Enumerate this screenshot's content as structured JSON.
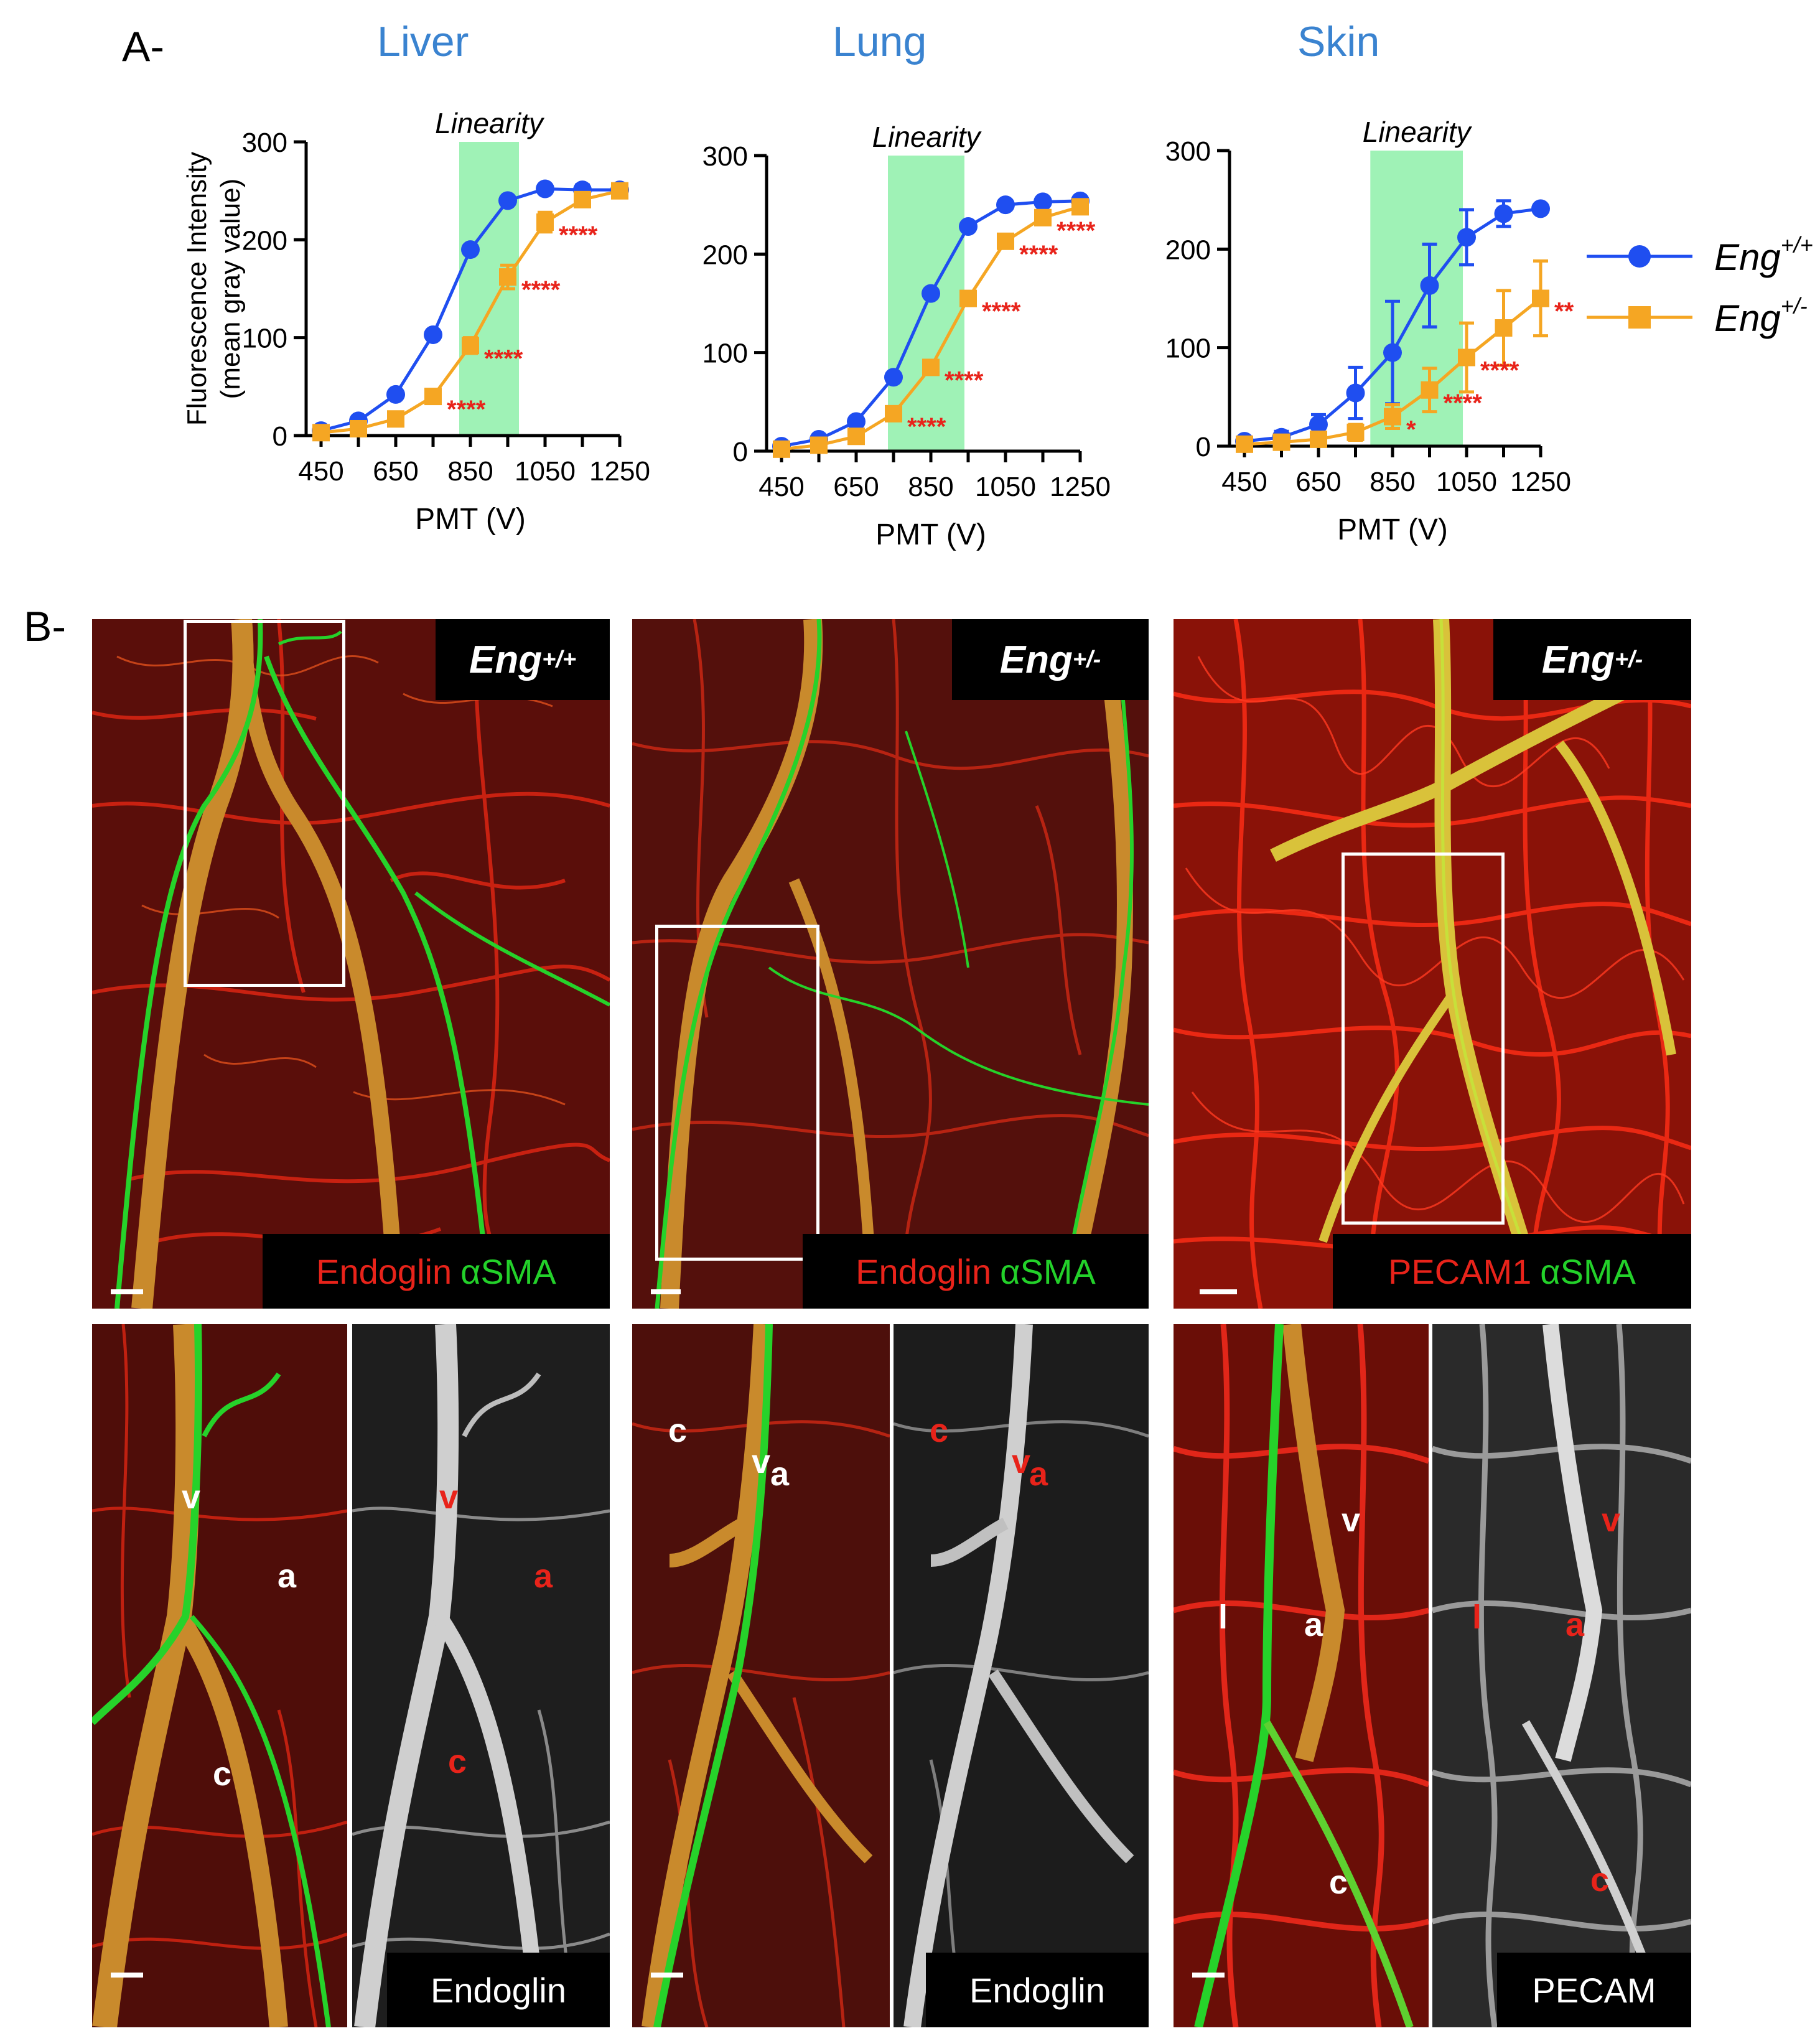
{
  "panel_a": {
    "letter": "A-"
  },
  "panel_b": {
    "letter": "B-"
  },
  "legend": {
    "wt": {
      "base": "Eng",
      "sup": "+/+",
      "color": "#1f4ef0"
    },
    "het": {
      "base": "Eng",
      "sup": "+/-",
      "color": "#f5a623"
    }
  },
  "chart_data": [
    {
      "type": "line",
      "title": "Liver",
      "xlabel": "PMT (V)",
      "ylabel": [
        "Fluorescence Intensity",
        "(mean gray value)"
      ],
      "x": [
        450,
        550,
        650,
        750,
        850,
        950,
        1050,
        1150,
        1250
      ],
      "xticks": [
        "450",
        "650",
        "850",
        "1050",
        "1250"
      ],
      "yticks": [
        0,
        100,
        200,
        300
      ],
      "xlim": [
        450,
        1250
      ],
      "ylim": [
        0,
        300
      ],
      "band": {
        "label": "Linearity",
        "x_from": 820,
        "x_to": 980
      },
      "series": [
        {
          "name": "Eng+/+",
          "values": [
            5,
            15,
            42,
            103,
            190,
            240,
            252,
            251,
            251
          ],
          "err": [
            0,
            0,
            0,
            0,
            0,
            0,
            0,
            5,
            0
          ]
        },
        {
          "name": "Eng+/-",
          "values": [
            3,
            7,
            17,
            40,
            92,
            162,
            218,
            241,
            250
          ],
          "err": [
            0,
            0,
            0,
            0,
            8,
            12,
            10,
            0,
            0
          ]
        }
      ],
      "significance": [
        {
          "x": 750,
          "y": 40,
          "text": "****"
        },
        {
          "x": 850,
          "y": 92,
          "text": "****"
        },
        {
          "x": 950,
          "y": 162,
          "text": "****"
        },
        {
          "x": 1050,
          "y": 218,
          "text": "****"
        }
      ]
    },
    {
      "type": "line",
      "title": "Lung",
      "xlabel": "PMT (V)",
      "ylabel": [],
      "x": [
        450,
        550,
        650,
        750,
        850,
        950,
        1050,
        1150,
        1250
      ],
      "xticks": [
        "450",
        "650",
        "850",
        "1050",
        "1250"
      ],
      "yticks": [
        0,
        100,
        200,
        300
      ],
      "xlim": [
        450,
        1250
      ],
      "ylim": [
        0,
        300
      ],
      "band": {
        "label": "Linearity",
        "x_from": 735,
        "x_to": 940
      },
      "series": [
        {
          "name": "Eng+/+",
          "values": [
            5,
            12,
            30,
            75,
            160,
            228,
            250,
            253,
            254
          ],
          "err": [
            0,
            0,
            0,
            0,
            0,
            0,
            0,
            0,
            0
          ]
        },
        {
          "name": "Eng+/-",
          "values": [
            2,
            6,
            15,
            38,
            85,
            155,
            213,
            237,
            248
          ],
          "err": [
            0,
            0,
            0,
            0,
            0,
            0,
            0,
            5,
            5
          ]
        }
      ],
      "significance": [
        {
          "x": 750,
          "y": 38,
          "text": "****"
        },
        {
          "x": 850,
          "y": 85,
          "text": "****"
        },
        {
          "x": 950,
          "y": 155,
          "text": "****"
        },
        {
          "x": 1050,
          "y": 213,
          "text": "****"
        },
        {
          "x": 1150,
          "y": 237,
          "text": "****"
        }
      ]
    },
    {
      "type": "line",
      "title": "Skin",
      "xlabel": "PMT (V)",
      "ylabel": [],
      "x": [
        450,
        550,
        650,
        750,
        850,
        950,
        1050,
        1150,
        1250
      ],
      "xticks": [
        "450",
        "650",
        "850",
        "1050",
        "1250"
      ],
      "yticks": [
        0,
        100,
        200,
        300
      ],
      "xlim": [
        450,
        1250
      ],
      "ylim": [
        0,
        300
      ],
      "band": {
        "label": "Linearity",
        "x_from": 790,
        "x_to": 1040
      },
      "series": [
        {
          "name": "Eng+/+",
          "values": [
            5,
            9,
            22,
            54,
            95,
            163,
            212,
            236,
            241
          ],
          "err": [
            0,
            6,
            10,
            26,
            52,
            42,
            28,
            13,
            0
          ]
        },
        {
          "name": "Eng+/-",
          "values": [
            2,
            4,
            7,
            14,
            30,
            57,
            90,
            120,
            150
          ],
          "err": [
            0,
            0,
            0,
            8,
            12,
            22,
            35,
            38,
            38
          ]
        }
      ],
      "significance": [
        {
          "x": 850,
          "y": 30,
          "text": "*"
        },
        {
          "x": 950,
          "y": 57,
          "text": "****"
        },
        {
          "x": 1050,
          "y": 90,
          "text": "****"
        },
        {
          "x": 1250,
          "y": 150,
          "text": "**"
        }
      ]
    }
  ],
  "micrographs": {
    "top": [
      {
        "genotype_base": "Eng",
        "genotype_sup": "+/+",
        "stain_red": "Endoglin",
        "stain_green": "αSMA"
      },
      {
        "genotype_base": "Eng",
        "genotype_sup": "+/-",
        "stain_red": "Endoglin",
        "stain_green": "αSMA"
      },
      {
        "genotype_base": "Eng",
        "genotype_sup": "+/-",
        "stain_red": "PECAM1",
        "stain_green": "αSMA"
      }
    ],
    "bottom_gray_labels": [
      "Endoglin",
      "Endoglin",
      "PECAM"
    ],
    "vessel_labels": {
      "v": "v",
      "a": "a",
      "c": "c",
      "l": "l"
    }
  }
}
